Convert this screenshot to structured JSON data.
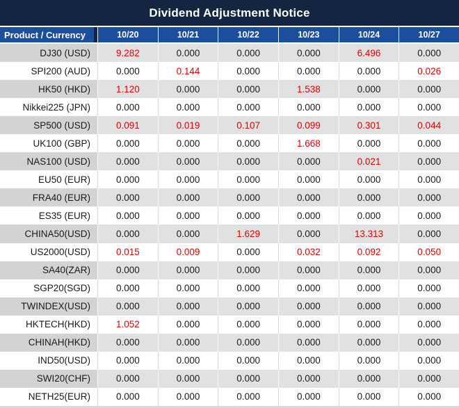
{
  "title": "Dividend Adjustment Notice",
  "colors": {
    "title_bg": "#142541",
    "header_bg": "#1b4f9e",
    "gray_label": "#d3d3d3",
    "gray_cell": "#e1e1e1",
    "red": "#e00000",
    "text": "#1a1a1a",
    "divider": "#d9d9d9"
  },
  "chart_data": {
    "type": "table",
    "title": "Dividend Adjustment Notice",
    "columns": [
      "Product / Currency",
      "10/20",
      "10/21",
      "10/22",
      "10/23",
      "10/24",
      "10/27"
    ],
    "red_means": "non-zero dividend adjustment highlighted in red",
    "rows": [
      {
        "product": "DJ30 (USD)",
        "values": [
          "9.282",
          "0.000",
          "0.000",
          "0.000",
          "6.496",
          "0.000"
        ],
        "red_columns": [
          0,
          4
        ]
      },
      {
        "product": "SPI200 (AUD)",
        "values": [
          "0.000",
          "0.144",
          "0.000",
          "0.000",
          "0.000",
          "0.026"
        ],
        "red_columns": [
          1,
          5
        ]
      },
      {
        "product": "HK50 (HKD)",
        "values": [
          "1.120",
          "0.000",
          "0.000",
          "1.538",
          "0.000",
          "0.000"
        ],
        "red_columns": [
          0,
          3
        ]
      },
      {
        "product": "Nikkei225 (JPN)",
        "values": [
          "0.000",
          "0.000",
          "0.000",
          "0.000",
          "0.000",
          "0.000"
        ],
        "red_columns": []
      },
      {
        "product": "SP500 (USD)",
        "values": [
          "0.091",
          "0.019",
          "0.107",
          "0.099",
          "0.301",
          "0.044"
        ],
        "red_columns": [
          0,
          1,
          2,
          3,
          4,
          5
        ]
      },
      {
        "product": "UK100 (GBP)",
        "values": [
          "0.000",
          "0.000",
          "0.000",
          "1.668",
          "0.000",
          "0.000"
        ],
        "red_columns": [
          3
        ]
      },
      {
        "product": "NAS100 (USD)",
        "values": [
          "0.000",
          "0.000",
          "0.000",
          "0.000",
          "0.021",
          "0.000"
        ],
        "red_columns": [
          4
        ]
      },
      {
        "product": "EU50 (EUR)",
        "values": [
          "0.000",
          "0.000",
          "0.000",
          "0.000",
          "0.000",
          "0.000"
        ],
        "red_columns": []
      },
      {
        "product": "FRA40 (EUR)",
        "values": [
          "0.000",
          "0.000",
          "0.000",
          "0.000",
          "0.000",
          "0.000"
        ],
        "red_columns": []
      },
      {
        "product": "ES35 (EUR)",
        "values": [
          "0.000",
          "0.000",
          "0.000",
          "0.000",
          "0.000",
          "0.000"
        ],
        "red_columns": []
      },
      {
        "product": "CHINA50(USD)",
        "values": [
          "0.000",
          "0.000",
          "1.629",
          "0.000",
          "13.313",
          "0.000"
        ],
        "red_columns": [
          2,
          4
        ]
      },
      {
        "product": "US2000(USD)",
        "values": [
          "0.015",
          "0.009",
          "0.000",
          "0.032",
          "0.092",
          "0.050"
        ],
        "red_columns": [
          0,
          1,
          3,
          4,
          5
        ]
      },
      {
        "product": "SA40(ZAR)",
        "values": [
          "0.000",
          "0.000",
          "0.000",
          "0.000",
          "0.000",
          "0.000"
        ],
        "red_columns": []
      },
      {
        "product": "SGP20(SGD)",
        "values": [
          "0.000",
          "0.000",
          "0.000",
          "0.000",
          "0.000",
          "0.000"
        ],
        "red_columns": []
      },
      {
        "product": "TWINDEX(USD)",
        "values": [
          "0.000",
          "0.000",
          "0.000",
          "0.000",
          "0.000",
          "0.000"
        ],
        "red_columns": []
      },
      {
        "product": "HKTECH(HKD)",
        "values": [
          "1.052",
          "0.000",
          "0.000",
          "0.000",
          "0.000",
          "0.000"
        ],
        "red_columns": [
          0
        ]
      },
      {
        "product": "CHINAH(HKD)",
        "values": [
          "0.000",
          "0.000",
          "0.000",
          "0.000",
          "0.000",
          "0.000"
        ],
        "red_columns": []
      },
      {
        "product": "IND50(USD)",
        "values": [
          "0.000",
          "0.000",
          "0.000",
          "0.000",
          "0.000",
          "0.000"
        ],
        "red_columns": []
      },
      {
        "product": "SWI20(CHF)",
        "values": [
          "0.000",
          "0.000",
          "0.000",
          "0.000",
          "0.000",
          "0.000"
        ],
        "red_columns": []
      },
      {
        "product": "NETH25(EUR)",
        "values": [
          "0.000",
          "0.000",
          "0.000",
          "0.000",
          "0.000",
          "0.000"
        ],
        "red_columns": []
      }
    ]
  }
}
